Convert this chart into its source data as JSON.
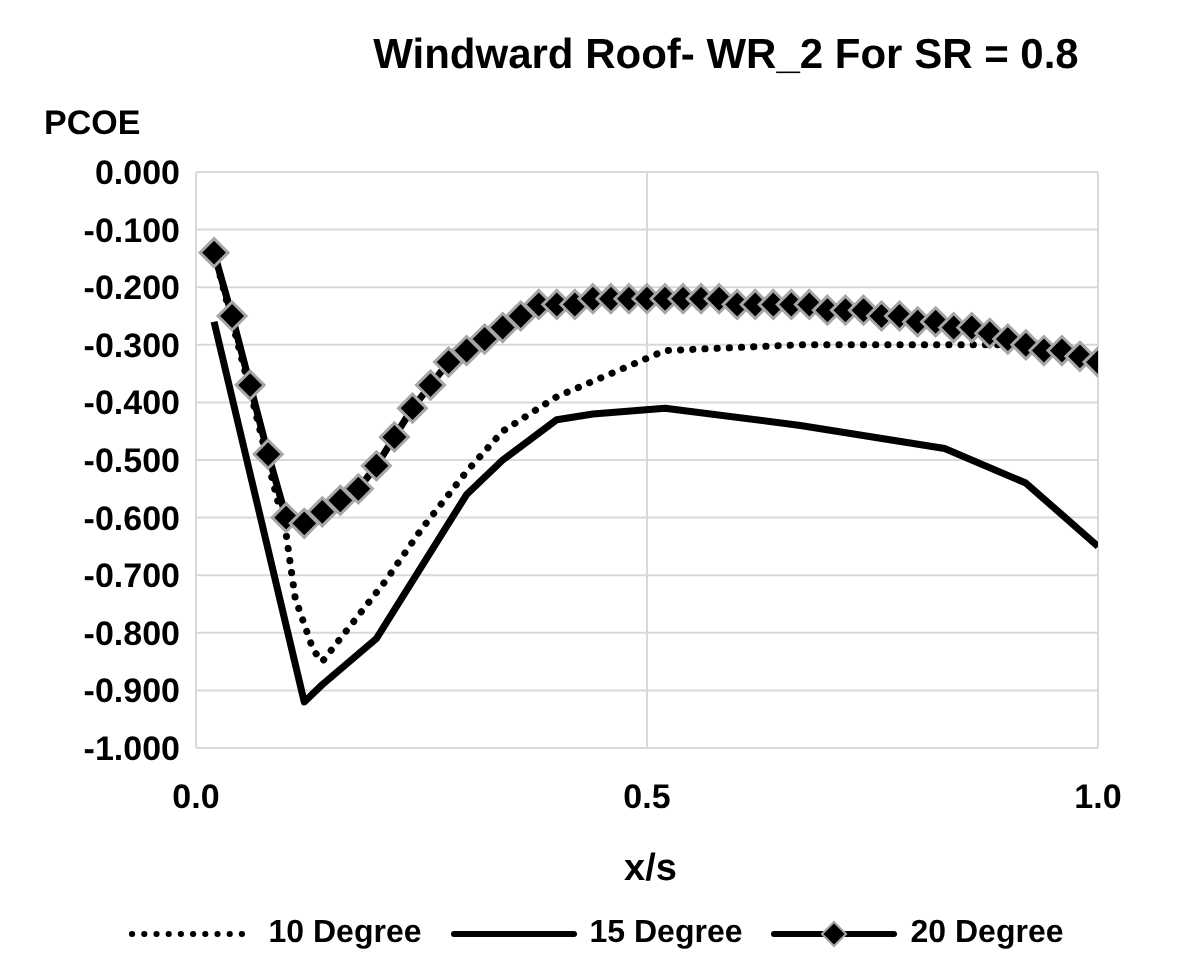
{
  "chart_data": {
    "type": "line",
    "title": "Windward Roof- WR_2 For SR = 0.8",
    "xlabel": "x/s",
    "ylabel": "PCOE",
    "xlim": [
      0,
      1
    ],
    "xticks": [
      {
        "value": 0,
        "label": "0.0"
      },
      {
        "value": 0.5,
        "label": "0.5"
      },
      {
        "value": 1,
        "label": "1.0"
      }
    ],
    "ylim": [
      -1,
      0
    ],
    "yticks": [
      {
        "value": 0,
        "label": "0.000"
      },
      {
        "value": -0.1,
        "label": "-0.100"
      },
      {
        "value": -0.2,
        "label": "-0.200"
      },
      {
        "value": -0.3,
        "label": "-0.300"
      },
      {
        "value": -0.4,
        "label": "-0.400"
      },
      {
        "value": -0.5,
        "label": "-0.500"
      },
      {
        "value": -0.6,
        "label": "-0.600"
      },
      {
        "value": -0.7,
        "label": "-0.700"
      },
      {
        "value": -0.8,
        "label": "-0.800"
      },
      {
        "value": -0.9,
        "label": "-0.900"
      },
      {
        "value": -1,
        "label": "-1.000"
      }
    ],
    "grid": true,
    "legend": "bottom",
    "series": [
      {
        "name": "10 Degree",
        "color": "#000000",
        "line_style": "dotted",
        "marker": "none",
        "x": [
          0.02,
          0.06,
          0.1,
          0.11,
          0.13,
          0.14,
          0.17,
          0.21,
          0.25,
          0.3,
          0.34,
          0.4,
          0.46,
          0.52,
          0.67,
          0.84,
          0.9,
          1.0
        ],
        "values": [
          -0.14,
          -0.38,
          -0.63,
          -0.74,
          -0.83,
          -0.85,
          -0.79,
          -0.71,
          -0.62,
          -0.52,
          -0.45,
          -0.39,
          -0.35,
          -0.31,
          -0.3,
          -0.3,
          -0.3,
          -0.33
        ]
      },
      {
        "name": "15 Degree",
        "color": "#000000",
        "line_style": "solid",
        "marker": "none",
        "x": [
          0.02,
          0.12,
          0.14,
          0.2,
          0.3,
          0.34,
          0.4,
          0.44,
          0.52,
          0.67,
          0.83,
          0.92,
          1.0
        ],
        "values": [
          -0.26,
          -0.92,
          -0.89,
          -0.81,
          -0.56,
          -0.5,
          -0.43,
          -0.42,
          -0.41,
          -0.44,
          -0.48,
          -0.54,
          -0.65
        ]
      },
      {
        "name": "20 Degree",
        "color": "#000000",
        "line_style": "solid",
        "marker": "diamond",
        "x": [
          0.02,
          0.04,
          0.06,
          0.08,
          0.1,
          0.12,
          0.14,
          0.16,
          0.18,
          0.2,
          0.22,
          0.24,
          0.26,
          0.28,
          0.3,
          0.32,
          0.34,
          0.36,
          0.38,
          0.4,
          0.42,
          0.44,
          0.46,
          0.48,
          0.5,
          0.52,
          0.54,
          0.56,
          0.58,
          0.6,
          0.62,
          0.64,
          0.66,
          0.68,
          0.7,
          0.72,
          0.74,
          0.76,
          0.78,
          0.8,
          0.82,
          0.84,
          0.86,
          0.88,
          0.9,
          0.92,
          0.94,
          0.96,
          0.98,
          1.0
        ],
        "values": [
          -0.14,
          -0.25,
          -0.37,
          -0.49,
          -0.6,
          -0.61,
          -0.59,
          -0.57,
          -0.55,
          -0.51,
          -0.46,
          -0.41,
          -0.37,
          -0.33,
          -0.31,
          -0.29,
          -0.27,
          -0.25,
          -0.23,
          -0.23,
          -0.23,
          -0.22,
          -0.22,
          -0.22,
          -0.22,
          -0.22,
          -0.22,
          -0.22,
          -0.22,
          -0.23,
          -0.23,
          -0.23,
          -0.23,
          -0.23,
          -0.24,
          -0.24,
          -0.24,
          -0.25,
          -0.25,
          -0.26,
          -0.26,
          -0.27,
          -0.27,
          -0.28,
          -0.29,
          -0.3,
          -0.31,
          -0.31,
          -0.32,
          -0.33
        ]
      }
    ]
  }
}
